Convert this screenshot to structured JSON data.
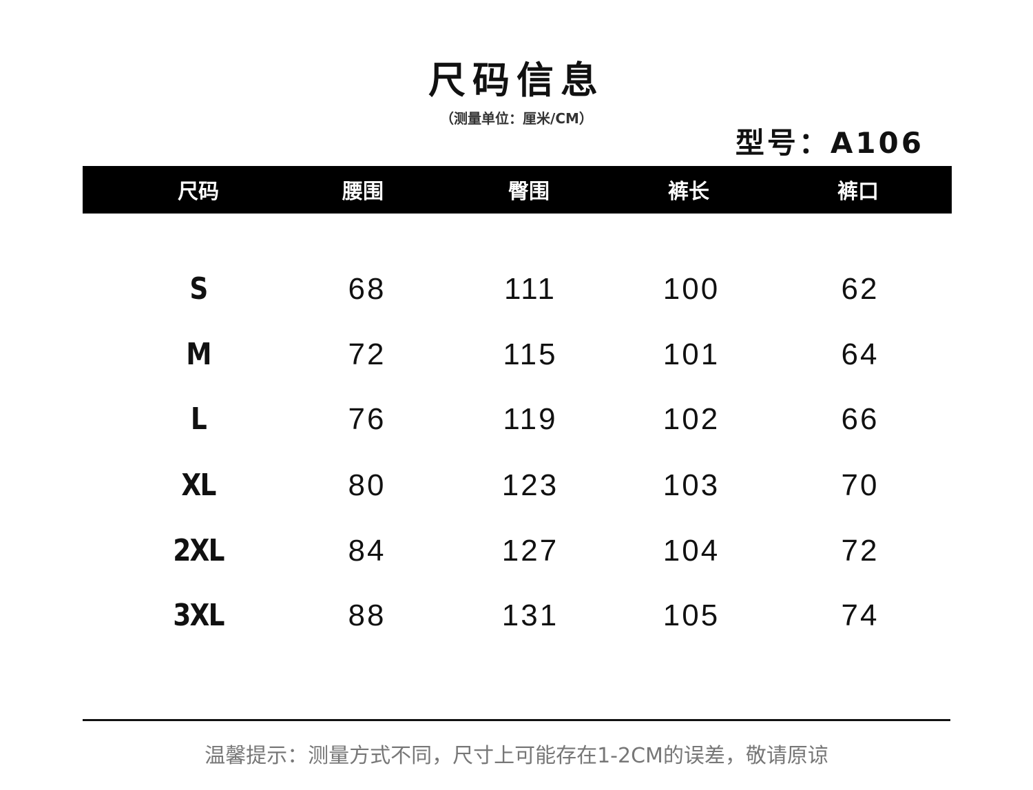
{
  "title": "尺码信息",
  "subtitle": "（测量单位：厘米/CM）",
  "model": "型号：A106",
  "table": {
    "headers": [
      "尺码",
      "腰围",
      "臀围",
      "裤长",
      "裤口"
    ],
    "rows": [
      [
        "S",
        "68",
        "111",
        "100",
        "62"
      ],
      [
        "M",
        "72",
        "115",
        "101",
        "64"
      ],
      [
        "L",
        "76",
        "119",
        "102",
        "66"
      ],
      [
        "XL",
        "80",
        "123",
        "103",
        "70"
      ],
      [
        "2XL",
        "84",
        "127",
        "104",
        "72"
      ],
      [
        "3XL",
        "88",
        "131",
        "105",
        "74"
      ]
    ]
  },
  "footer": "温馨提示：测量方式不同，尺寸上可能存在1-2CM的误差，敬请原谅"
}
